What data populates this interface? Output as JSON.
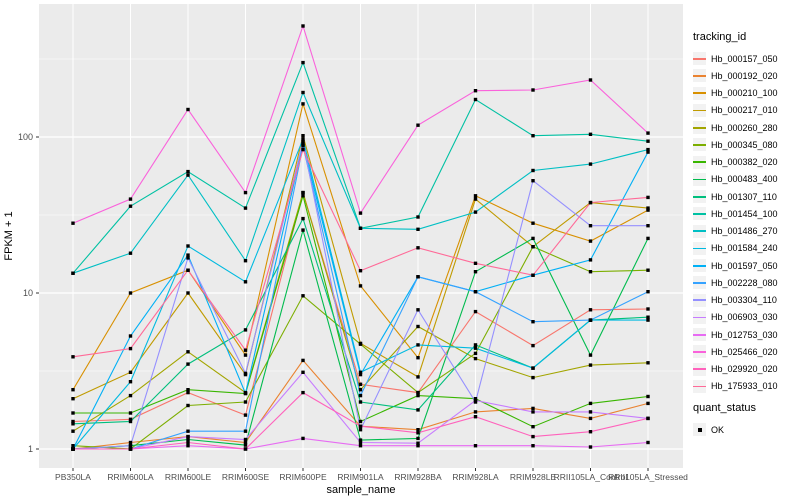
{
  "chart_data": {
    "type": "line",
    "title": "",
    "xlabel": "sample_name",
    "ylabel": "FPKM + 1",
    "y_scale": "log10",
    "ylim": [
      0.75,
      710
    ],
    "grid": "on",
    "legend_position": "right",
    "y_tick_labels": [
      "1",
      "10",
      "100"
    ],
    "y_major_ticks": [
      1,
      10,
      100
    ],
    "y_minor_gridlines": [
      3.162,
      31.62,
      316.2
    ],
    "categories": [
      "PB350LA",
      "RRIM600LA",
      "RRIM600LE",
      "RRIM600SE",
      "RRIM600PE",
      "RRIM901LA",
      "RRIM928BA",
      "RRIM928LA",
      "RRIM928LE",
      "RRII105LA_Control",
      "RRII105LA_Stressed"
    ],
    "legend_titles": {
      "tracking": "tracking_id",
      "quant": "quant_status"
    },
    "quant_status_items": [
      {
        "label": "OK",
        "marker": "black-square"
      }
    ],
    "series": [
      {
        "name": "Hb_000157_050",
        "color": "#F8766D",
        "values": [
          1.5,
          1.55,
          2.3,
          1.65,
          44,
          2.6,
          2.3,
          7.6,
          4.6,
          7.8,
          7.9
        ]
      },
      {
        "name": "Hb_000192_020",
        "color": "#EA8331",
        "values": [
          1.0,
          1.1,
          1.2,
          1.1,
          3.7,
          1.4,
          1.33,
          1.73,
          1.82,
          1.57,
          1.96
        ]
      },
      {
        "name": "Hb_000210_100",
        "color": "#D89000",
        "values": [
          2.4,
          10,
          14,
          4.0,
          163,
          11.1,
          3.85,
          42,
          28,
          21.5,
          34
        ]
      },
      {
        "name": "Hb_000217_010",
        "color": "#C09B00",
        "values": [
          2.1,
          3.1,
          10,
          3.0,
          102,
          4.75,
          2.9,
          40,
          19.8,
          38,
          35
        ]
      },
      {
        "name": "Hb_000260_280",
        "color": "#A3A500",
        "values": [
          1.3,
          2.2,
          4.2,
          2.3,
          44,
          2.4,
          6.1,
          3.8,
          2.87,
          3.45,
          3.57
        ]
      },
      {
        "name": "Hb_000345_080",
        "color": "#7CAE00",
        "values": [
          1.05,
          1.0,
          1.9,
          2.0,
          9.6,
          4.7,
          2.3,
          4.1,
          19.8,
          13.7,
          14.0
        ]
      },
      {
        "name": "Hb_000382_020",
        "color": "#39B600",
        "values": [
          1.7,
          1.7,
          2.4,
          2.27,
          42,
          1.5,
          2.2,
          2.1,
          1.39,
          1.96,
          2.17
        ]
      },
      {
        "name": "Hb_000483_400",
        "color": "#00BB4E",
        "values": [
          1.0,
          1.05,
          1.15,
          1.06,
          25.3,
          1.14,
          1.17,
          13.7,
          22.4,
          4.0,
          22.4
        ]
      },
      {
        "name": "Hb_001307_110",
        "color": "#00BF7D",
        "values": [
          1.45,
          1.5,
          3.5,
          5.8,
          30,
          2.0,
          1.78,
          4.65,
          3.3,
          6.7,
          7.0
        ]
      },
      {
        "name": "Hb_001454_100",
        "color": "#00C1A3",
        "values": [
          13.4,
          36,
          60,
          35,
          300,
          26,
          30.7,
          174,
          102,
          104,
          94
        ]
      },
      {
        "name": "Hb_001486_270",
        "color": "#00BFC4",
        "values": [
          13.4,
          18,
          57,
          16.1,
          193,
          26,
          25.6,
          33,
          61,
          67,
          83
        ]
      },
      {
        "name": "Hb_001584_240",
        "color": "#00BAE0",
        "values": [
          1.0,
          2.7,
          20,
          11.8,
          97,
          3.1,
          4.65,
          4.43,
          3.3,
          6.7,
          6.7
        ]
      },
      {
        "name": "Hb_001597_050",
        "color": "#00B0F6",
        "values": [
          1.0,
          5.3,
          17.5,
          2.27,
          90,
          3.0,
          12.7,
          10.2,
          13.0,
          16.3,
          80
        ]
      },
      {
        "name": "Hb_002228_080",
        "color": "#35A2FF",
        "values": [
          1.0,
          1.0,
          1.3,
          1.3,
          88,
          2.2,
          12.7,
          10.2,
          6.55,
          6.7,
          10.2
        ]
      },
      {
        "name": "Hb_003304_110",
        "color": "#9590FF",
        "values": [
          1.0,
          1.05,
          16.8,
          3.05,
          93,
          1.33,
          7.8,
          2.0,
          52.5,
          27,
          27
        ]
      },
      {
        "name": "Hb_006903_030",
        "color": "#C77CFF",
        "values": [
          1.0,
          1.0,
          1.2,
          1.15,
          3.1,
          1.1,
          1.09,
          2.05,
          1.73,
          1.73,
          1.57
        ]
      },
      {
        "name": "Hb_012753_030",
        "color": "#E76BF3",
        "values": [
          1.0,
          1.0,
          1.05,
          1.0,
          1.17,
          1.05,
          1.05,
          1.05,
          1.05,
          1.03,
          1.1
        ]
      },
      {
        "name": "Hb_025466_020",
        "color": "#FA62DB",
        "values": [
          28,
          40,
          150,
          44,
          515,
          32.5,
          119,
          198,
          200,
          232,
          106
        ]
      },
      {
        "name": "Hb_029920_020",
        "color": "#FF62BC",
        "values": [
          1.0,
          1.0,
          1.1,
          1.0,
          2.3,
          1.4,
          1.27,
          1.61,
          1.2,
          1.29,
          1.57
        ]
      },
      {
        "name": "Hb_175933_010",
        "color": "#FF6A98",
        "values": [
          3.9,
          4.4,
          14,
          4.3,
          83,
          13.9,
          19.5,
          15.5,
          13.0,
          38,
          41
        ]
      }
    ]
  },
  "style": {
    "panel_fill": "#EBEBEB",
    "gridline_color": "#FFFFFF",
    "tick_label_color": "#4D4D4D",
    "axis_title_color": "#000000",
    "point_color": "#000000",
    "legend_key_fill": "#F2F2F2"
  }
}
